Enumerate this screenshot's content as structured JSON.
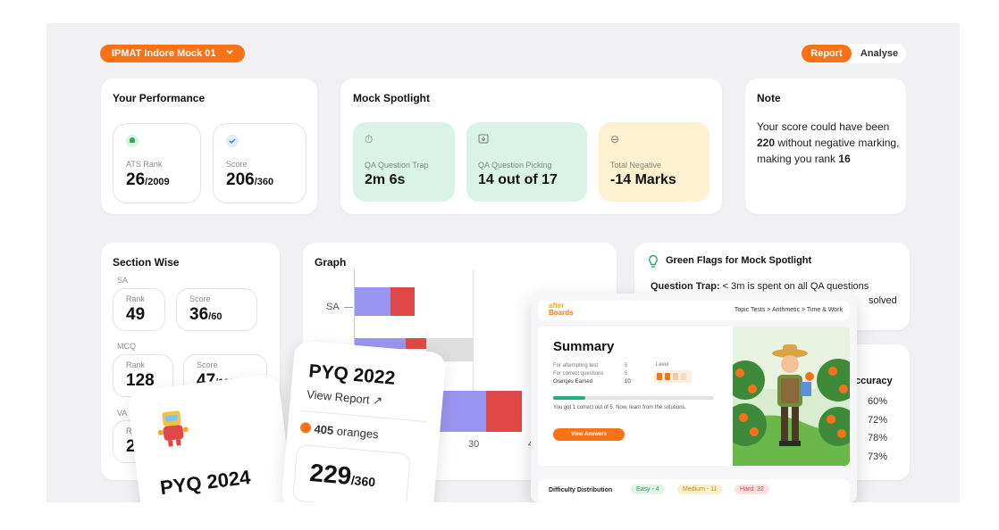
{
  "header": {
    "mock_select": "IPMAT Indore Mock 01",
    "tab_report": "Report",
    "tab_analyse": "Analyse"
  },
  "performance": {
    "title": "Your Performance",
    "rank": {
      "label": "ATS Rank",
      "value": "26",
      "total": "/2009"
    },
    "score": {
      "label": "Score",
      "value": "206",
      "total": "/360"
    }
  },
  "spotlight": {
    "title": "Mock Spotlight",
    "items": [
      {
        "label": "QA Question Trap",
        "value": "2m 6s",
        "icon": "timer-icon"
      },
      {
        "label": "QA Question Picking",
        "value": "14 out of 17",
        "icon": "download-icon"
      },
      {
        "label": "Total Negative",
        "value": "-14 Marks",
        "icon": "minus-circle-icon"
      }
    ]
  },
  "note": {
    "title": "Note",
    "pre": "Your score could have been",
    "b1": "220",
    "mid": " without negative marking, making you rank",
    "b2": "16"
  },
  "section": {
    "title": "Section Wise",
    "sa_label": "SA",
    "sa_rank_label": "Rank",
    "sa_rank": "49",
    "sa_score_label": "Score",
    "sa_score": "36",
    "sa_total": "/60",
    "mcq_label": "MCQ",
    "mcq_rank_label": "Rank",
    "mcq_rank": "128",
    "mcq_score_label": "Score",
    "mcq_score": "47",
    "mcq_total": "/100",
    "va_label": "VA",
    "va_rank_label": "R",
    "va_rank": "2"
  },
  "graph": {
    "title": "Graph",
    "y_label": "SA",
    "x_ticks": [
      "30",
      "4"
    ]
  },
  "flags": {
    "title": "Green Flags for Mock Spotlight",
    "line1_bold": "Question Trap:",
    "line1": " < 3m is spent on all QA questions",
    "line2": "solved"
  },
  "accuracy": {
    "header": "ccuracy",
    "values": [
      "60%",
      "72%",
      "78%",
      "73%"
    ]
  },
  "pyq2022": {
    "title": "PYQ 2022",
    "link": "View Report ↗",
    "oranges_count": "405",
    "oranges_unit": "oranges",
    "score": "229",
    "total": "/360"
  },
  "pyq2024": {
    "title": "PYQ 2024"
  },
  "popup": {
    "logo_top": "after",
    "logo_bottom": "Boards",
    "breadcrumb": "Topic Tests > Arithmetic > Time & Work",
    "summary_title": "Summary",
    "rows": [
      {
        "label": "For attempting test",
        "value": "5"
      },
      {
        "label": "For correct questions",
        "value": "5"
      },
      {
        "label": "Oranges Earned",
        "value": "10"
      }
    ],
    "level_label": "Level",
    "progress_text": "You got 1 correct out of 5. Now, learn from the solutions.",
    "progress": 0.2,
    "view_answers": "View Answers",
    "difficulty_label": "Difficulty Distribution",
    "easy": "Easy - 4",
    "medium": "Medium - 11",
    "hard": "Hard: 32"
  },
  "colors": {
    "accent": "#f97316",
    "bar_blue": "#9b95f2",
    "bar_red": "#e04848",
    "mint": "#daf3e9",
    "cream": "#fdf1cf"
  }
}
